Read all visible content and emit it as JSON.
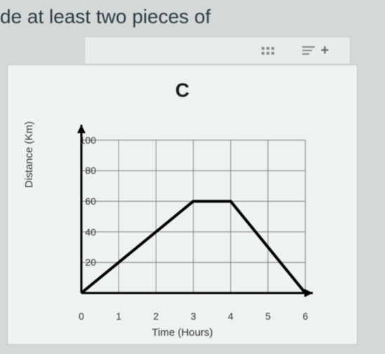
{
  "header_fragment": "de at least two pieces of",
  "chart": {
    "type": "line",
    "title": "C",
    "x_label": "Time (Hours)",
    "y_label": "Distance (Km)",
    "xlim": [
      0,
      6.2
    ],
    "ylim": [
      0,
      110
    ],
    "x_ticks": [
      0,
      1,
      2,
      3,
      4,
      5,
      6
    ],
    "y_ticks": [
      20,
      40,
      60,
      80,
      100
    ],
    "x_tick_labels": [
      "0",
      "1",
      "2",
      "3",
      "4",
      "5",
      "6"
    ],
    "y_tick_labels": [
      "20",
      "40",
      "60",
      "80",
      "100"
    ],
    "points": [
      {
        "x": 0,
        "y": 0
      },
      {
        "x": 3,
        "y": 60
      },
      {
        "x": 4,
        "y": 60
      },
      {
        "x": 6,
        "y": 0
      }
    ],
    "line_color": "#000000",
    "line_width": 4,
    "grid_color": "#808080",
    "grid_width": 1,
    "axis_color": "#000000",
    "axis_width": 3,
    "background_color": "#eef2f0",
    "font_color": "#333333",
    "title_fontsize": 28,
    "label_fontsize": 15,
    "tick_fontsize": 14
  },
  "toolbar": {
    "grid_button": "grid",
    "lines_button": "align",
    "plus_button": "+"
  }
}
